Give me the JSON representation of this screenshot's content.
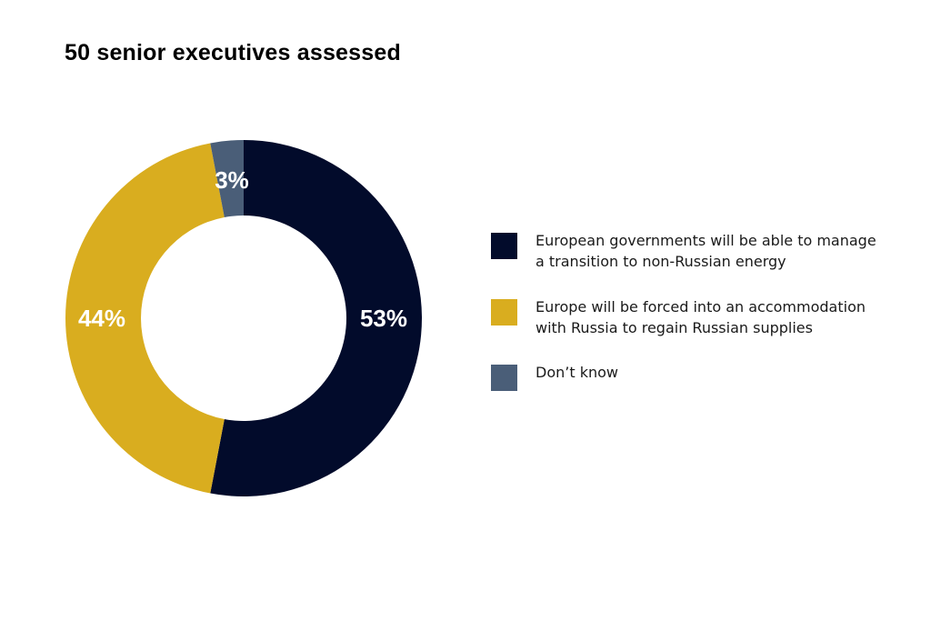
{
  "chart_data": {
    "type": "pie",
    "variant": "donut",
    "title": "50 senior executives assessed",
    "slices": [
      {
        "label": "European governments will be able to manage a transition to non-Russian energy",
        "value": 53,
        "display": "53%",
        "color": "#020b2b"
      },
      {
        "label": "Europe will be forced into an accommodation with Russia to regain Russian supplies",
        "value": 44,
        "display": "44%",
        "color": "#d9ad1f"
      },
      {
        "label": "Don’t know",
        "value": 3,
        "display": "3%",
        "color": "#4a5e78"
      }
    ],
    "legend_position": "right",
    "start": "top",
    "direction": "clockwise"
  },
  "legend": {
    "items": [
      {
        "lines": [
          "European governments will be able to manage",
          "a transition to non-Russian energy"
        ]
      },
      {
        "lines": [
          "Europe will be forced into an accommodation",
          "with Russia to regain Russian supplies"
        ]
      },
      {
        "lines": [
          "Don’t know"
        ]
      }
    ]
  }
}
